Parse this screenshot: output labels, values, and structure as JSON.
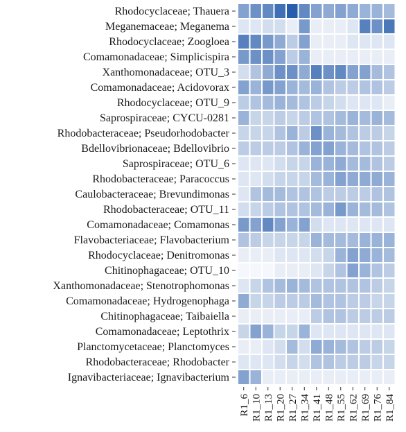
{
  "chart_data": {
    "type": "heatmap",
    "title": "",
    "xlabel": "",
    "ylabel": "",
    "columns": [
      "R1_6",
      "R1_10",
      "R1_13",
      "R1_20",
      "R1_27",
      "R1_34",
      "R1_41",
      "R1_48",
      "R1_55",
      "R1_62",
      "R1_69",
      "R1_76",
      "R1_84"
    ],
    "rows": [
      "Rhodocyclaceae; Thauera",
      "Meganemaceae; Meganema",
      "Rhodocyclaceae; Zoogloea",
      "Comamonadaceae; Simplicispira",
      "Xanthomonadaceae; OTU_3",
      "Comamonadaceae; Acidovorax",
      "Rhodocyclaceae; OTU_9",
      "Saprospiraceae; CYCU-0281",
      "Rhodobacteraceae; Pseudorhodobacter",
      "Bdellovibrionaceae; Bdellovibrio",
      "Saprospiraceae; OTU_6",
      "Rhodobacteraceae; Paracoccus",
      "Caulobacteraceae; Brevundimonas",
      "Rhodobacteraceae; OTU_11",
      "Comamonadaceae; Comamonas",
      "Flavobacteriaceae; Flavobacterium",
      "Rhodocyclaceae; Denitromonas",
      "Chitinophagaceae; OTU_10",
      "Xanthomonadaceae; Stenotrophomonas",
      "Comamonadaceae; Hydrogenophaga",
      "Chitinophagaceae; Taibaiella",
      "Comamonadaceae; Leptothrix",
      "Planctomycetaceae; Planctomyces",
      "Rhodobacteraceae; Rhodobacter",
      "Ignavibacteriaceae; Ignavibacterium"
    ],
    "values": [
      [
        0.55,
        0.65,
        0.7,
        0.85,
        0.95,
        0.7,
        0.55,
        0.5,
        0.55,
        0.5,
        0.45,
        0.45,
        0.4
      ],
      [
        0.15,
        0.15,
        0.2,
        0.2,
        0.1,
        0.6,
        0.1,
        0.1,
        0.1,
        0.15,
        0.75,
        0.65,
        0.8
      ],
      [
        0.75,
        0.7,
        0.6,
        0.5,
        0.3,
        0.55,
        0.1,
        0.1,
        0.1,
        0.15,
        0.15,
        0.15,
        0.15
      ],
      [
        0.6,
        0.65,
        0.65,
        0.55,
        0.3,
        0.45,
        0.1,
        0.1,
        0.1,
        0.1,
        0.1,
        0.1,
        0.1
      ],
      [
        0.2,
        0.35,
        0.5,
        0.65,
        0.65,
        0.5,
        0.75,
        0.65,
        0.7,
        0.55,
        0.55,
        0.4,
        0.35
      ],
      [
        0.55,
        0.45,
        0.6,
        0.55,
        0.45,
        0.4,
        0.45,
        0.35,
        0.3,
        0.3,
        0.35,
        0.35,
        0.3
      ],
      [
        0.3,
        0.35,
        0.4,
        0.45,
        0.4,
        0.35,
        0.3,
        0.25,
        0.2,
        0.15,
        0.15,
        0.15,
        0.1
      ],
      [
        0.45,
        0.25,
        0.25,
        0.3,
        0.25,
        0.3,
        0.35,
        0.35,
        0.4,
        0.45,
        0.4,
        0.45,
        0.4
      ],
      [
        0.25,
        0.25,
        0.25,
        0.35,
        0.45,
        0.3,
        0.65,
        0.45,
        0.4,
        0.35,
        0.3,
        0.3,
        0.25
      ],
      [
        0.3,
        0.3,
        0.3,
        0.3,
        0.35,
        0.45,
        0.55,
        0.55,
        0.45,
        0.4,
        0.35,
        0.35,
        0.3
      ],
      [
        0.15,
        0.15,
        0.15,
        0.2,
        0.25,
        0.25,
        0.45,
        0.45,
        0.5,
        0.4,
        0.4,
        0.35,
        0.3
      ],
      [
        0.15,
        0.15,
        0.2,
        0.25,
        0.25,
        0.25,
        0.4,
        0.45,
        0.55,
        0.5,
        0.5,
        0.5,
        0.45
      ],
      [
        0.15,
        0.35,
        0.4,
        0.4,
        0.35,
        0.35,
        0.35,
        0.3,
        0.3,
        0.3,
        0.3,
        0.35,
        0.35
      ],
      [
        0.2,
        0.25,
        0.3,
        0.35,
        0.35,
        0.35,
        0.4,
        0.45,
        0.6,
        0.45,
        0.4,
        0.4,
        0.35
      ],
      [
        0.6,
        0.55,
        0.7,
        0.55,
        0.45,
        0.55,
        0.2,
        0.15,
        0.15,
        0.15,
        0.15,
        0.15,
        0.15
      ],
      [
        0.35,
        0.3,
        0.25,
        0.25,
        0.25,
        0.25,
        0.45,
        0.4,
        0.4,
        0.4,
        0.45,
        0.45,
        0.45
      ],
      [
        0.1,
        0.1,
        0.1,
        0.15,
        0.15,
        0.15,
        0.2,
        0.25,
        0.45,
        0.55,
        0.5,
        0.45,
        0.4
      ],
      [
        0.05,
        0.05,
        0.05,
        0.1,
        0.1,
        0.1,
        0.15,
        0.25,
        0.35,
        0.55,
        0.45,
        0.35,
        0.3
      ],
      [
        0.15,
        0.25,
        0.35,
        0.4,
        0.45,
        0.4,
        0.35,
        0.35,
        0.35,
        0.35,
        0.35,
        0.3,
        0.25
      ],
      [
        0.5,
        0.25,
        0.25,
        0.3,
        0.3,
        0.3,
        0.4,
        0.35,
        0.35,
        0.3,
        0.3,
        0.25,
        0.25
      ],
      [
        0.1,
        0.1,
        0.1,
        0.1,
        0.1,
        0.1,
        0.3,
        0.35,
        0.35,
        0.3,
        0.3,
        0.3,
        0.3
      ],
      [
        0.25,
        0.55,
        0.45,
        0.25,
        0.25,
        0.45,
        0.15,
        0.15,
        0.15,
        0.15,
        0.15,
        0.15,
        0.15
      ],
      [
        0.1,
        0.1,
        0.15,
        0.2,
        0.4,
        0.2,
        0.5,
        0.45,
        0.4,
        0.35,
        0.3,
        0.3,
        0.25
      ],
      [
        0.15,
        0.15,
        0.15,
        0.2,
        0.25,
        0.2,
        0.35,
        0.35,
        0.3,
        0.3,
        0.3,
        0.25,
        0.25
      ],
      [
        0.55,
        0.45,
        0.1,
        0.1,
        0.1,
        0.1,
        0.1,
        0.1,
        0.1,
        0.1,
        0.1,
        0.1,
        0.1
      ]
    ],
    "value_range": [
      0,
      1
    ],
    "color_scale": {
      "low": "#ffffff",
      "high": "#1e56a8"
    },
    "grid_line_color": "#ffffff",
    "legend": "none"
  }
}
